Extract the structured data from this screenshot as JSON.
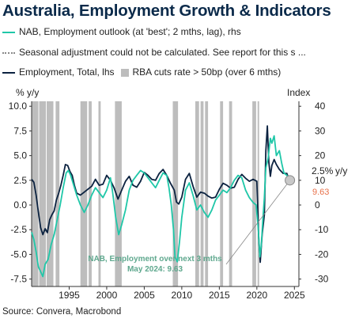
{
  "title": "Australia, Employment Growth & Indicators",
  "legend": {
    "nab": "NAB, Employment outlook (at 'best'; 2 mths, lag), rhs",
    "seasonal": "Seasonal adjustment could not be calculated. See report for this s ...",
    "employment": "Employment, Total, lhs",
    "rba": "RBA cuts rate > 50bp (over 6 mths)"
  },
  "source": "Source: Convera, Macrobond",
  "colors": {
    "employment": "#0b2240",
    "nab": "#1fc7a8",
    "rba_band": "#bdbdbd",
    "value_label": "#e8714a",
    "annotation": "#5fa88e",
    "title": "#0b2a4a"
  },
  "chart_data": {
    "type": "line",
    "xlim": [
      1990,
      2025.6
    ],
    "x_ticks": [
      "1995",
      "2000",
      "2005",
      "2010",
      "2015",
      "2020",
      "2025"
    ],
    "left_axis": {
      "label": "% y/y",
      "ylim": [
        -8.25,
        10.5
      ],
      "ticks": [
        "10.0",
        "7.5",
        "5.0",
        "2.5",
        "0.0",
        "-2.5",
        "-5.0",
        "-7.5"
      ]
    },
    "right_axis": {
      "label": "Index",
      "ylim": [
        -33,
        42
      ],
      "ticks": [
        "40",
        "30",
        "20",
        "10",
        "0",
        "-10",
        "-20",
        "-30"
      ]
    },
    "rba_cuts": [
      [
        1990.0,
        1990.9
      ],
      [
        1991.0,
        1991.9
      ],
      [
        1992.0,
        1992.9
      ],
      [
        1993.2,
        1993.7
      ],
      [
        1996.5,
        1997.4
      ],
      [
        1997.6,
        1998.0
      ],
      [
        1998.9,
        1999.2
      ],
      [
        2001.1,
        2002.0
      ],
      [
        2008.8,
        2009.5
      ],
      [
        2011.8,
        2012.3
      ],
      [
        2012.5,
        2012.9
      ],
      [
        2013.1,
        2013.5
      ],
      [
        2015.1,
        2015.5
      ],
      [
        2016.3,
        2016.7
      ],
      [
        2019.4,
        2019.9
      ],
      [
        2020.1,
        2020.3
      ]
    ],
    "series": [
      {
        "name": "Employment, Total, lhs",
        "axis": "left",
        "x": [
          1990.0,
          1990.3,
          1990.6,
          1990.9,
          1991.2,
          1991.5,
          1991.8,
          1992.1,
          1992.4,
          1992.7,
          1993.0,
          1993.3,
          1993.6,
          1993.9,
          1994.2,
          1994.5,
          1994.8,
          1995.1,
          1995.4,
          1995.7,
          1996.0,
          1996.5,
          1997.0,
          1997.5,
          1998.0,
          1998.5,
          1999.0,
          1999.5,
          2000.0,
          2000.5,
          2001.0,
          2001.5,
          2002.0,
          2002.5,
          2003.0,
          2003.5,
          2004.0,
          2004.5,
          2005.0,
          2005.5,
          2006.0,
          2006.5,
          2007.0,
          2007.5,
          2008.0,
          2008.5,
          2009.0,
          2009.3,
          2009.6,
          2010.0,
          2010.5,
          2011.0,
          2011.5,
          2012.0,
          2012.5,
          2013.0,
          2013.5,
          2014.0,
          2014.5,
          2015.0,
          2015.5,
          2016.0,
          2016.5,
          2017.0,
          2017.5,
          2018.0,
          2018.5,
          2019.0,
          2019.5,
          2020.0,
          2020.25,
          2020.45,
          2020.7,
          2021.0,
          2021.2,
          2021.4,
          2021.6,
          2021.8,
          2022.0,
          2022.3,
          2022.6,
          2023.0,
          2023.5,
          2024.0,
          2024.3
        ],
        "y": [
          2.6,
          2.3,
          1.0,
          -0.7,
          -2.3,
          -3.0,
          -2.4,
          -2.8,
          -1.5,
          -1.0,
          -0.6,
          0.5,
          1.2,
          2.0,
          3.0,
          4.1,
          4.0,
          3.4,
          3.0,
          2.0,
          1.2,
          1.0,
          1.3,
          1.6,
          1.9,
          2.6,
          2.0,
          2.1,
          3.0,
          2.5,
          1.7,
          0.6,
          1.5,
          2.4,
          2.9,
          2.0,
          1.8,
          2.4,
          3.3,
          3.0,
          2.6,
          2.5,
          3.2,
          3.6,
          3.0,
          2.2,
          1.5,
          0.3,
          0.1,
          0.8,
          2.6,
          3.2,
          1.9,
          0.8,
          1.3,
          1.2,
          0.9,
          0.7,
          0.8,
          1.6,
          2.2,
          2.0,
          1.7,
          1.8,
          2.6,
          3.1,
          2.7,
          2.4,
          2.6,
          2.4,
          -3.4,
          -5.8,
          -3.0,
          -1.0,
          5.5,
          8.0,
          4.3,
          2.9,
          4.0,
          4.6,
          4.1,
          3.6,
          3.2,
          3.2,
          2.5
        ]
      },
      {
        "name": "NAB, Employment outlook (at 'best'; 2 mths, lag), rhs",
        "axis": "right",
        "x": [
          1990.0,
          1990.3,
          1990.6,
          1990.9,
          1991.2,
          1991.5,
          1991.8,
          1992.2,
          1992.6,
          1993.0,
          1993.4,
          1993.8,
          1994.2,
          1994.6,
          1994.9,
          1995.2,
          1995.6,
          1996.0,
          1996.5,
          1997.0,
          1997.5,
          1998.0,
          1998.5,
          1999.0,
          1999.5,
          2000.0,
          2000.5,
          2000.8,
          2001.2,
          2001.6,
          2002.0,
          2002.5,
          2003.0,
          2003.5,
          2004.0,
          2004.5,
          2005.0,
          2005.5,
          2006.0,
          2006.5,
          2007.0,
          2007.5,
          2008.0,
          2008.3,
          2008.6,
          2008.9,
          2009.1,
          2009.4,
          2009.7,
          2010.0,
          2010.5,
          2011.0,
          2011.5,
          2012.0,
          2012.5,
          2013.0,
          2013.5,
          2014.0,
          2014.5,
          2015.0,
          2015.5,
          2016.0,
          2016.5,
          2017.0,
          2017.5,
          2018.0,
          2018.5,
          2019.0,
          2019.5,
          2019.9,
          2020.2,
          2020.4,
          2020.6,
          2020.8,
          2021.0,
          2021.2,
          2021.5,
          2021.8,
          2022.0,
          2022.3,
          2022.6,
          2023.0,
          2023.3,
          2023.6,
          2024.0,
          2024.3
        ],
        "y": [
          -11,
          -14,
          -19,
          -25,
          -27,
          -29,
          -24,
          -22,
          -16,
          -12,
          -6,
          0,
          7,
          13,
          14,
          12,
          8,
          4,
          0,
          -3,
          0,
          4,
          7,
          5,
          3,
          6,
          11,
          5,
          -5,
          -12,
          -8,
          -2,
          6,
          10,
          12,
          14,
          13,
          11,
          9,
          7,
          10,
          13,
          12,
          7,
          0,
          -10,
          -21,
          -23,
          -15,
          -5,
          6,
          9,
          4,
          -2,
          0,
          -3,
          -5,
          -2,
          2,
          4,
          6,
          5,
          7,
          10,
          12,
          11,
          6,
          3,
          1,
          0,
          -10,
          -21,
          -16,
          -6,
          3,
          15,
          19,
          27,
          25,
          28,
          20,
          22,
          17,
          13,
          12,
          10
        ]
      }
    ],
    "highlight_point": {
      "x": 2024.4,
      "value": 2.5,
      "label": "2.5%",
      "label_unit": "y/y"
    },
    "nab_value": {
      "x": 2024.4,
      "value": 9.63,
      "label": "9.63"
    },
    "annotation": {
      "line1": "NAB, Employment over next 3 mths",
      "line2": "May 2024: 9.63"
    }
  }
}
